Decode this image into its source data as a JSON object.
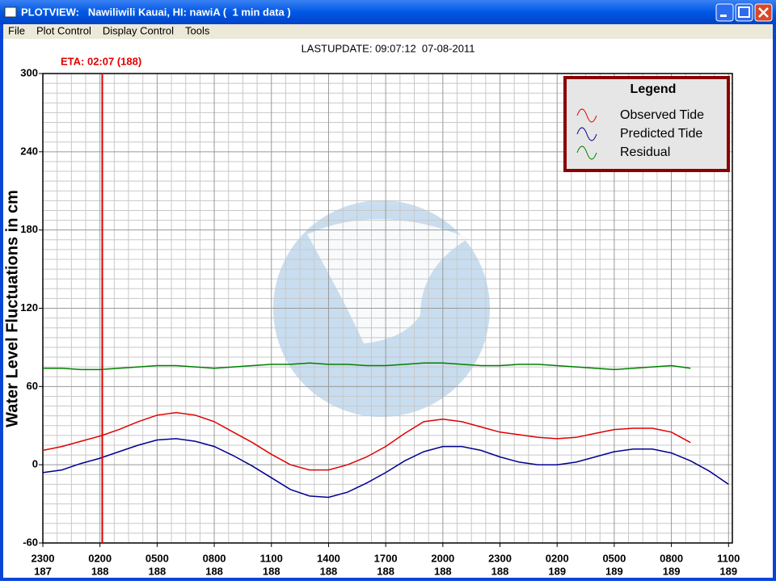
{
  "window": {
    "title": "PLOTVIEW:   Nawiliwili Kauai, HI: nawiA (  1 min data )",
    "menu": [
      "File",
      "Plot Control",
      "Display Control",
      "Tools"
    ]
  },
  "chart_data": {
    "type": "line",
    "title": "LASTUPDATE: 09:07:12  07-08-2011",
    "y_label": "Water Level Fluctuations in cm",
    "legend_title": "Legend",
    "legend": "upper-right",
    "xlim": [
      0,
      36.2
    ],
    "ylim": [
      -60,
      300
    ],
    "xticks": [
      {
        "value": 0,
        "label": "2300",
        "sublabel": "187"
      },
      {
        "value": 3,
        "label": "0200",
        "sublabel": "188"
      },
      {
        "value": 6,
        "label": "0500",
        "sublabel": "188"
      },
      {
        "value": 9,
        "label": "0800",
        "sublabel": "188"
      },
      {
        "value": 12,
        "label": "1100",
        "sublabel": "188"
      },
      {
        "value": 15,
        "label": "1400",
        "sublabel": "188"
      },
      {
        "value": 18,
        "label": "1700",
        "sublabel": "188"
      },
      {
        "value": 21,
        "label": "2000",
        "sublabel": "188"
      },
      {
        "value": 24,
        "label": "2300",
        "sublabel": "188"
      },
      {
        "value": 27,
        "label": "0200",
        "sublabel": "189"
      },
      {
        "value": 30,
        "label": "0500",
        "sublabel": "189"
      },
      {
        "value": 33,
        "label": "0800",
        "sublabel": "189"
      },
      {
        "value": 36,
        "label": "1100",
        "sublabel": "189"
      }
    ],
    "yticks": [
      -60,
      0,
      60,
      120,
      180,
      240,
      300
    ],
    "grid": true,
    "grid_subdivisions": [
      4,
      8
    ],
    "annotations": [
      {
        "text": "ETA: 02:07 (188)",
        "x": 3.12,
        "color": "#e00000"
      }
    ],
    "x": [
      0,
      1,
      2,
      3,
      4,
      5,
      6,
      7,
      8,
      9,
      10,
      11,
      12,
      13,
      14,
      15,
      16,
      17,
      18,
      19,
      20,
      21,
      22,
      23,
      24,
      25,
      26,
      27,
      28,
      29,
      30,
      31,
      32,
      33,
      34,
      35,
      36
    ],
    "series": [
      {
        "name": "Observed Tide",
        "color": "#e00000",
        "values": [
          11,
          14,
          18,
          22,
          27,
          33,
          38,
          40,
          38,
          33,
          25,
          17,
          8,
          0,
          -4,
          -4,
          0,
          6,
          14,
          24,
          33,
          35,
          33,
          29,
          25,
          23,
          21,
          20,
          21,
          24,
          27,
          28,
          28,
          25,
          17,
          null,
          null
        ]
      },
      {
        "name": "Predicted Tide",
        "color": "#000090",
        "values": [
          -6,
          -4,
          1,
          5,
          10,
          15,
          19,
          20,
          18,
          14,
          7,
          -1,
          -10,
          -19,
          -24,
          -25,
          -21,
          -14,
          -6,
          3,
          10,
          14,
          14,
          11,
          6,
          2,
          0,
          0,
          2,
          6,
          10,
          12,
          12,
          9,
          3,
          -5,
          -15
        ]
      },
      {
        "name": "Residual",
        "color": "#008000",
        "values": [
          74,
          74,
          73,
          73,
          74,
          75,
          76,
          76,
          75,
          74,
          75,
          76,
          77,
          77,
          78,
          77,
          77,
          76,
          76,
          77,
          78,
          78,
          77,
          76,
          76,
          77,
          77,
          76,
          75,
          74,
          73,
          74,
          75,
          76,
          74,
          null,
          null
        ]
      }
    ]
  }
}
